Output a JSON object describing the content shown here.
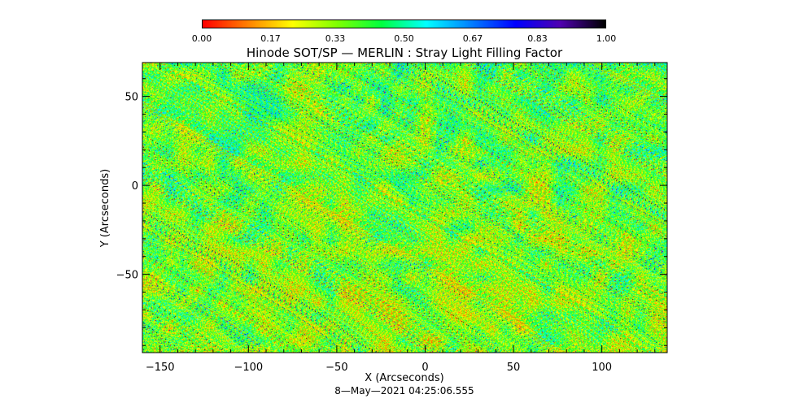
{
  "chart_data": {
    "type": "heatmap",
    "title": "Hinode SOT/SP — MERLIN : Stray Light Filling Factor",
    "xlabel": "X (Arcseconds)",
    "ylabel": "Y (Arcseconds)",
    "xlim": [
      -160,
      137
    ],
    "ylim": [
      -94,
      69
    ],
    "xticks": [
      -150,
      -100,
      -50,
      0,
      50,
      100
    ],
    "xtick_labels": [
      "−150",
      "−100",
      "−50",
      "0",
      "50",
      "100"
    ],
    "yticks": [
      -50,
      0,
      50
    ],
    "ytick_labels": [
      "−50",
      "0",
      "50"
    ],
    "colorbar": {
      "range": [
        0.0,
        1.0
      ],
      "ticks": [
        0.0,
        0.17,
        0.33,
        0.5,
        0.67,
        0.83,
        1.0
      ],
      "tick_labels": [
        "0.00",
        "0.17",
        "0.33",
        "0.50",
        "0.67",
        "0.83",
        "1.00"
      ],
      "colormap": [
        "#ff0000",
        "#ff8000",
        "#ffff00",
        "#80ff00",
        "#00ff40",
        "#00ffff",
        "#0080ff",
        "#0000ff",
        "#5000b0",
        "#000000"
      ]
    },
    "grid": false
  },
  "footer": {
    "timestamp": "8—May—2021 04:25:06.555"
  }
}
